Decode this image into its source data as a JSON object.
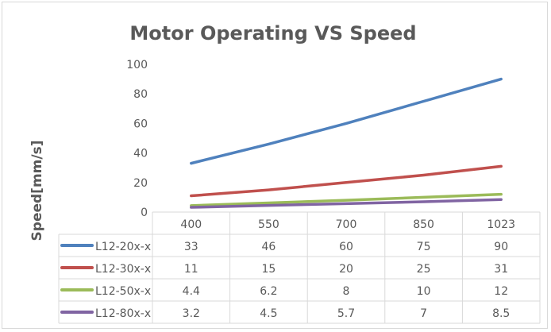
{
  "chart_data": {
    "type": "line",
    "title": "Motor Operating VS Speed",
    "xlabel": "",
    "ylabel": "Speed[mm/s]",
    "categories": [
      "400",
      "550",
      "700",
      "850",
      "1023"
    ],
    "ylim": [
      0,
      100
    ],
    "yticks": [
      0,
      20,
      40,
      60,
      80,
      100
    ],
    "grid": false,
    "legend": "data-table",
    "series": [
      {
        "name": "L12-20x-x",
        "color": "#4f81bd",
        "values": [
          33,
          46,
          60,
          75,
          90
        ]
      },
      {
        "name": "L12-30x-x",
        "color": "#c0504d",
        "values": [
          11,
          15,
          20,
          25,
          31
        ]
      },
      {
        "name": "L12-50x-x",
        "color": "#9bbb59",
        "values": [
          4.4,
          6.2,
          8,
          10,
          12
        ]
      },
      {
        "name": "L12-80x-x",
        "color": "#8064a2",
        "values": [
          3.2,
          4.5,
          5.7,
          7,
          8.5
        ]
      }
    ]
  }
}
